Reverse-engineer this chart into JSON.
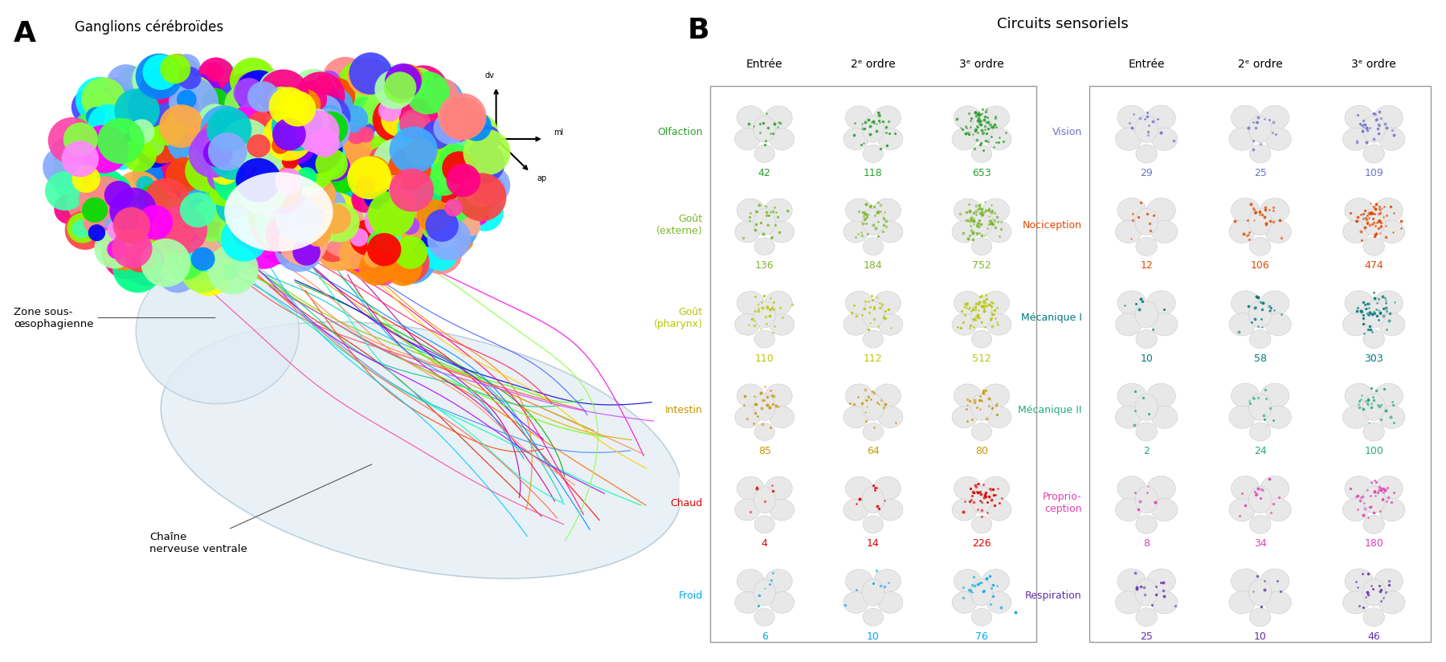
{
  "panel_A_label": "A",
  "panel_B_label": "B",
  "panel_A_title": "Ganglions cérébroïdes",
  "panel_B_title": "Circuits sensoriels",
  "axes_labels": {
    "dv": "dv",
    "ml": "ml",
    "ap": "ap"
  },
  "zone_label": "Zone sous-\nœsophagienne",
  "chain_label": "Chaîne\nnerveuse ventrale",
  "col_headers": [
    "Entrée",
    "2ᵉ ordre",
    "3ᵉ ordre"
  ],
  "left_rows": [
    {
      "name": "Olfaction",
      "color": "#2a9e2a",
      "values": [
        42,
        118,
        653
      ]
    },
    {
      "name": "Goût\n(externe)",
      "color": "#7ab82a",
      "values": [
        136,
        184,
        752
      ]
    },
    {
      "name": "Goût\n(pharynx)",
      "color": "#b8c800",
      "values": [
        110,
        112,
        512
      ]
    },
    {
      "name": "Intestin",
      "color": "#c89800",
      "values": [
        85,
        64,
        80
      ]
    },
    {
      "name": "Chaud",
      "color": "#dd0000",
      "values": [
        4,
        14,
        226
      ]
    },
    {
      "name": "Froid",
      "color": "#00aaee",
      "values": [
        6,
        10,
        76
      ]
    }
  ],
  "right_rows": [
    {
      "name": "Vision",
      "color": "#7070cc",
      "values": [
        29,
        25,
        109
      ]
    },
    {
      "name": "Nociception",
      "color": "#e04800",
      "values": [
        12,
        106,
        474
      ]
    },
    {
      "name": "Mécanique I",
      "color": "#007878",
      "values": [
        10,
        58,
        303
      ]
    },
    {
      "name": "Mécanique II",
      "color": "#22aa80",
      "values": [
        2,
        24,
        100
      ]
    },
    {
      "name": "Proprio-\nception",
      "color": "#e040b0",
      "values": [
        8,
        34,
        180
      ]
    },
    {
      "name": "Respiration",
      "color": "#6030a8",
      "values": [
        25,
        10,
        46
      ]
    }
  ],
  "bg_color": "#ffffff",
  "fiber_colors": [
    "#ff0000",
    "#dd2200",
    "#00aa00",
    "#0000dd",
    "#ff6600",
    "#ff00dd",
    "#00cccc",
    "#ddaa00",
    "#aa00aa",
    "#88cc00",
    "#ff4455",
    "#4488ff",
    "#ff8800",
    "#00cc88",
    "#cc0088",
    "#44ff00",
    "#0088ff",
    "#ff4400",
    "#00ffaa",
    "#aa00ff",
    "#ff8844",
    "#8800ff",
    "#00ffcc",
    "#ff0088",
    "#88ff44",
    "#ff6644",
    "#4466ff",
    "#ffcc00",
    "#00aaff",
    "#ff44aa",
    "#66ff00",
    "#cc44ff",
    "#ff2266",
    "#00ccff",
    "#ff8866"
  ],
  "sphere_colors": [
    "#ff0000",
    "#00dd00",
    "#0000ff",
    "#ff8800",
    "#ff00ff",
    "#00cccc",
    "#ffff00",
    "#8800ff",
    "#ff4400",
    "#00ff88",
    "#ff0088",
    "#88ff00",
    "#0088ff",
    "#ff8888",
    "#88aaff",
    "#ffaa88",
    "#00ffff",
    "#ff88ff",
    "#aaffaa",
    "#ff4444",
    "#44ff44",
    "#4444ff",
    "#ffaa44",
    "#44ffaa",
    "#aa44ff",
    "#ff44aa",
    "#aaff44",
    "#44aaff",
    "#ff4488",
    "#88ff44"
  ]
}
